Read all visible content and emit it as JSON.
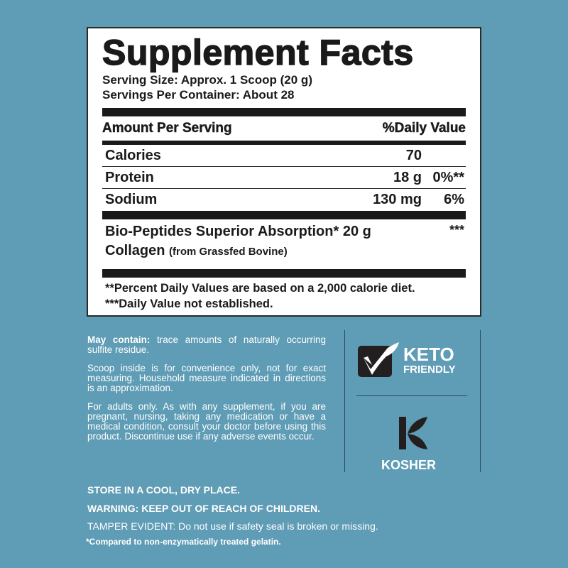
{
  "panel": {
    "title": "Supplement Facts",
    "serving_size": "Serving Size: Approx. 1 Scoop (20 g)",
    "servings_per_container": "Servings Per Container: About 28",
    "header_left": "Amount Per Serving",
    "header_right": "%Daily Value",
    "rows": [
      {
        "name": "Calories",
        "amount": "70",
        "dv": ""
      },
      {
        "name": "Protein",
        "amount": "18 g",
        "dv": "0%**"
      },
      {
        "name": "Sodium",
        "amount": "130 mg",
        "dv": "6%"
      }
    ],
    "collagen": {
      "line1": "Bio-Peptides Superior Absorption*",
      "line2": "Collagen",
      "sub": "(from Grassfed Bovine)",
      "amount": "20 g",
      "dv": "***"
    },
    "footnote1": "**Percent Daily Values are based on a 2,000 calorie diet.",
    "footnote2": "***Daily Value not established."
  },
  "info": {
    "may_contain_label": "May contain:",
    "may_contain": " trace amounts of naturally occurring sulfite residue.",
    "scoop": "Scoop inside is for convenience only, not for exact measuring. Household measure indicated in directions is an approximation.",
    "adults": "For adults only. As with any supplement, if you are pregnant, nursing, taking any medication or have a medical condition, consult your doctor before using this product. Discontinue use if any adverse events occur."
  },
  "badges": {
    "keto_line1": "KETO",
    "keto_line2": "FRIENDLY",
    "kosher": "KOSHER"
  },
  "bottom": {
    "store": "STORE IN A COOL, DRY PLACE.",
    "warning": "WARNING: KEEP OUT OF REACH OF CHILDREN.",
    "tamper": "TAMPER EVIDENT: Do not use if safety seal is broken or missing.",
    "compared": "*Compared to non-enzymatically treated gelatin."
  },
  "colors": {
    "background": "#5f9cb5",
    "panel": "#ffffff",
    "ink": "#1a1a1a"
  }
}
